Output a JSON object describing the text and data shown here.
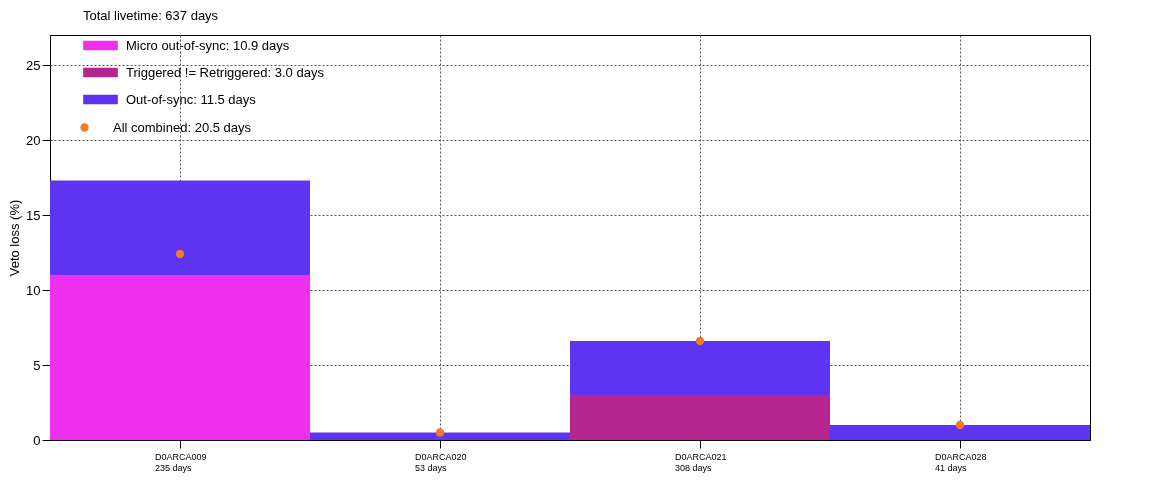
{
  "chart_data": {
    "type": "bar",
    "stacked": true,
    "ylabel": "Veto loss (%)",
    "legend_title": "Total livetime: 637 days",
    "legend": "top left",
    "grid": true,
    "categories": [
      "D0ARCA009\n235 days",
      "D0ARCA020\n53 days",
      "D0ARCA021\n308 days",
      "D0ARCA028\n41 days"
    ],
    "ylim": [
      0,
      27
    ],
    "yticks": [
      0,
      5,
      10,
      15,
      20,
      25
    ],
    "series": [
      {
        "name": "Micro out-of-sync: 10.9 days",
        "color": "#ee30ee",
        "values": [
          11.0,
          null,
          null,
          null
        ]
      },
      {
        "name": "Triggered != Retriggered: 3.0 days",
        "color": "#b5258f",
        "values": [
          null,
          null,
          3.0,
          null
        ]
      },
      {
        "name": "Out-of-sync: 11.5 days",
        "color": "#5e34f2",
        "values": [
          6.3,
          0.5,
          3.6,
          1.0
        ]
      },
      {
        "name": "All combined: 20.5 days",
        "type": "scatter",
        "marker": "circle",
        "color": "#f0792a",
        "values": [
          12.4,
          0.5,
          6.6,
          1.0
        ]
      }
    ]
  }
}
